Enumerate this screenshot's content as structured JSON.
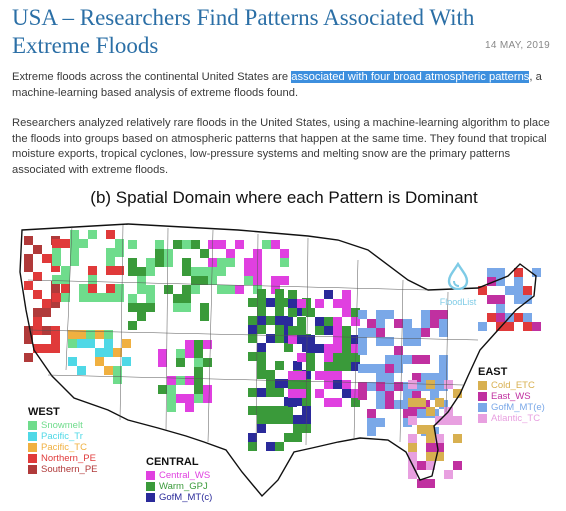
{
  "article": {
    "title": "USA – Researchers Find Patterns Associated With Extreme Floods",
    "date": "14 MAY, 2019",
    "p1_before": "Extreme floods across the continental United States are ",
    "p1_highlight": "associated with four broad atmospheric patterns",
    "p1_after": ", a machine-learning based analysis of extreme floods found.",
    "p2": "Researchers analyzed relatively rare floods in the United States, using a machine-learning algorithm to place the floods into groups based on atmospheric patterns that happen at the same time. They found that tropical moisture exports, tropical cyclones, low-pressure systems and melting snow are the primary patterns associated with extreme floods."
  },
  "figure": {
    "title": "(b) Spatial Domain where each Pattern is Dominant",
    "logo_text": "FloodList",
    "logo_icon": "water-drop-icon",
    "legend": {
      "west": {
        "heading": "WEST",
        "items": [
          {
            "label": "Snowmelt",
            "color": "#6fdc8c"
          },
          {
            "label": "Pacific_Tr",
            "color": "#4fd8e6"
          },
          {
            "label": "Pacific_TC",
            "color": "#f0b040"
          },
          {
            "label": "Northern_PE",
            "color": "#e03a3a"
          },
          {
            "label": "Southern_PE",
            "color": "#b03a3a"
          }
        ]
      },
      "central": {
        "heading": "CENTRAL",
        "items": [
          {
            "label": "Central_WS",
            "color": "#e040e0"
          },
          {
            "label": "Warm_GPJ",
            "color": "#3a9a3a"
          },
          {
            "label": "GofM_MT(c)",
            "color": "#2a2a9a"
          }
        ]
      },
      "east": {
        "heading": "EAST",
        "items": [
          {
            "label": "Cold_ETC",
            "color": "#d8b050"
          },
          {
            "label": "East_WS",
            "color": "#c030a0"
          },
          {
            "label": "GofM_MT(e)",
            "color": "#7aa8e8"
          },
          {
            "label": "Atlantic_TC",
            "color": "#e8a0e0"
          }
        ]
      }
    }
  }
}
